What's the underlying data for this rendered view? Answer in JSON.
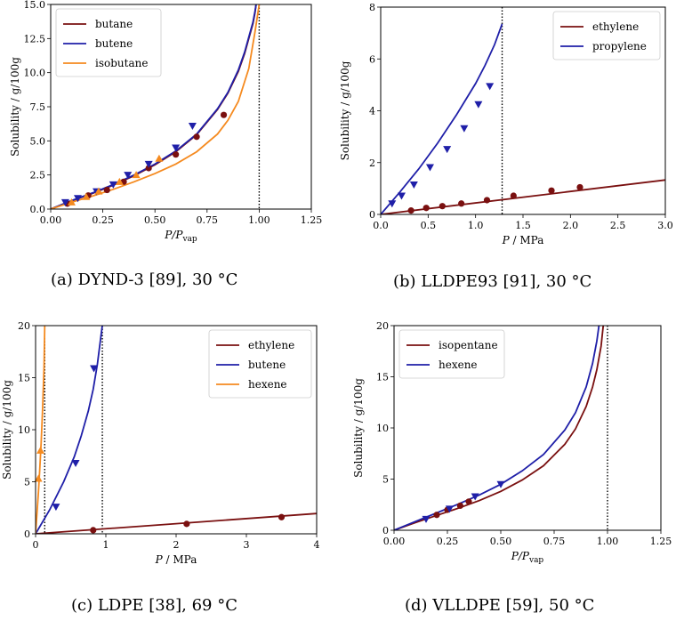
{
  "colors": {
    "maroon": "#7a1010",
    "navy": "#1f1fa8",
    "orange": "#f58a1f"
  },
  "chart_data": [
    {
      "id": "a",
      "type": "line",
      "caption": "(a) DYND-3 [89], 30 °C",
      "ylabel": "Solubility / g/100g",
      "xlabel": "P/P",
      "xlabel_sub": "vap",
      "xlim": [
        0,
        1.25
      ],
      "ylim": [
        0,
        15
      ],
      "xticks": [
        0,
        0.25,
        0.5,
        0.75,
        1.0,
        1.25
      ],
      "xtick_labels": [
        "0.00",
        "0.25",
        "0.50",
        "0.75",
        "1.00",
        "1.25"
      ],
      "yticks": [
        0,
        2.5,
        5,
        7.5,
        10,
        12.5,
        15
      ],
      "ytick_labels": [
        "0.0",
        "2.5",
        "5.0",
        "7.5",
        "10.0",
        "12.5",
        "15.0"
      ],
      "vline": 1.0,
      "legend_position": "top-left",
      "series": [
        {
          "name": "butane",
          "color": "#7a1010",
          "marker": "circle",
          "curve": {
            "x": [
              0,
              0.1,
              0.2,
              0.3,
              0.4,
              0.5,
              0.6,
              0.7,
              0.8,
              0.85,
              0.9,
              0.93,
              0.95,
              0.97,
              0.98,
              0.985
            ],
            "y": [
              0,
              0.6,
              1.15,
              1.75,
              2.45,
              3.25,
              4.2,
              5.45,
              7.3,
              8.5,
              10.1,
              11.4,
              12.5,
              13.6,
              14.4,
              15.0
            ]
          },
          "points": {
            "x": [
              0.08,
              0.18,
              0.27,
              0.35,
              0.47,
              0.6,
              0.7,
              0.83
            ],
            "y": [
              0.4,
              1.0,
              1.4,
              2.0,
              3.0,
              4.0,
              5.3,
              6.9
            ]
          }
        },
        {
          "name": "butene",
          "color": "#1f1fa8",
          "marker": "triangle-down",
          "curve": {
            "x": [
              0,
              0.1,
              0.2,
              0.3,
              0.4,
              0.5,
              0.6,
              0.7,
              0.8,
              0.85,
              0.9,
              0.93,
              0.95,
              0.97,
              0.98,
              0.985
            ],
            "y": [
              0,
              0.62,
              1.18,
              1.8,
              2.5,
              3.3,
              4.25,
              5.5,
              7.35,
              8.55,
              10.2,
              11.5,
              12.6,
              13.7,
              14.5,
              15.0
            ]
          },
          "points": {
            "x": [
              0.07,
              0.13,
              0.22,
              0.3,
              0.37,
              0.47,
              0.6,
              0.68
            ],
            "y": [
              0.5,
              0.8,
              1.3,
              1.8,
              2.5,
              3.3,
              4.5,
              6.1
            ]
          }
        },
        {
          "name": "isobutane",
          "color": "#f58a1f",
          "marker": "triangle-up",
          "curve": {
            "x": [
              0,
              0.1,
              0.2,
              0.3,
              0.4,
              0.5,
              0.6,
              0.7,
              0.8,
              0.85,
              0.9,
              0.95,
              0.98,
              1.0
            ],
            "y": [
              0,
              0.5,
              0.95,
              1.45,
              2.0,
              2.6,
              3.3,
              4.2,
              5.5,
              6.5,
              7.9,
              10.3,
              13.0,
              15.0
            ]
          },
          "points": {
            "x": [
              0.1,
              0.17,
              0.23,
              0.33,
              0.41,
              0.52
            ],
            "y": [
              0.5,
              0.9,
              1.3,
              2.0,
              2.5,
              3.7
            ]
          }
        }
      ]
    },
    {
      "id": "b",
      "type": "line",
      "caption": "(b) LLDPE93 [91], 30 °C",
      "ylabel": "Solubility / g/100g",
      "xlabel": "P / MPa",
      "xlabel_sub": "",
      "xlim": [
        0,
        3.0
      ],
      "ylim": [
        0,
        8
      ],
      "xticks": [
        0,
        0.5,
        1.0,
        1.5,
        2.0,
        2.5,
        3.0
      ],
      "xtick_labels": [
        "0.0",
        "0.5",
        "1.0",
        "1.5",
        "2.0",
        "2.5",
        "3.0"
      ],
      "yticks": [
        0,
        2,
        4,
        6,
        8
      ],
      "ytick_labels": [
        "0",
        "2",
        "4",
        "6",
        "8"
      ],
      "vline": 1.28,
      "legend_position": "top-right",
      "series": [
        {
          "name": "ethylene",
          "color": "#7a1010",
          "marker": "circle",
          "curve": {
            "x": [
              0,
              3.0
            ],
            "y": [
              0,
              1.33
            ]
          },
          "points": {
            "x": [
              0.32,
              0.48,
              0.65,
              0.85,
              1.12,
              1.4,
              1.8,
              2.1
            ],
            "y": [
              0.15,
              0.25,
              0.32,
              0.42,
              0.55,
              0.72,
              0.92,
              1.05
            ]
          }
        },
        {
          "name": "propylene",
          "color": "#1f1fa8",
          "marker": "triangle-down",
          "curve": {
            "x": [
              0,
              0.2,
              0.4,
              0.6,
              0.8,
              1.0,
              1.1,
              1.2,
              1.28
            ],
            "y": [
              0,
              0.85,
              1.75,
              2.75,
              3.85,
              5.05,
              5.75,
              6.55,
              7.35
            ]
          },
          "points": {
            "x": [
              0.12,
              0.22,
              0.35,
              0.52,
              0.7,
              0.88,
              1.03,
              1.15
            ],
            "y": [
              0.42,
              0.72,
              1.15,
              1.82,
              2.52,
              3.32,
              4.25,
              4.95
            ]
          }
        }
      ]
    },
    {
      "id": "c",
      "type": "line",
      "caption": "(c) LDPE [38], 69 °C",
      "ylabel": "Solubility / g/100g",
      "xlabel": "P / MPa",
      "xlabel_sub": "",
      "xlim": [
        0,
        4
      ],
      "ylim": [
        0,
        20
      ],
      "xticks": [
        0,
        1,
        2,
        3,
        4
      ],
      "xtick_labels": [
        "0",
        "1",
        "2",
        "3",
        "4"
      ],
      "yticks": [
        0,
        5,
        10,
        15,
        20
      ],
      "ytick_labels": [
        "0",
        "5",
        "10",
        "15",
        "20"
      ],
      "vlines": [
        0.13,
        0.95
      ],
      "legend_position": "top-right",
      "series": [
        {
          "name": "ethylene",
          "color": "#7a1010",
          "marker": "circle",
          "curve": {
            "x": [
              0,
              4
            ],
            "y": [
              0,
              1.95
            ]
          },
          "points": {
            "x": [
              0.82,
              2.15,
              3.5
            ],
            "y": [
              0.35,
              0.95,
              1.6
            ]
          }
        },
        {
          "name": "butene",
          "color": "#1f1fa8",
          "marker": "triangle-down",
          "curve": {
            "x": [
              0,
              0.2,
              0.4,
              0.55,
              0.65,
              0.75,
              0.82,
              0.88,
              0.93,
              0.95
            ],
            "y": [
              0,
              2.3,
              5.0,
              7.4,
              9.4,
              11.8,
              13.9,
              16.3,
              19.0,
              20.0
            ]
          },
          "points": {
            "x": [
              0.29,
              0.57,
              0.83
            ],
            "y": [
              2.6,
              6.8,
              15.9
            ]
          }
        },
        {
          "name": "hexene",
          "color": "#f58a1f",
          "marker": "triangle-up",
          "curve": {
            "x": [
              0,
              0.02,
              0.04,
              0.06,
              0.08,
              0.1,
              0.12,
              0.13
            ],
            "y": [
              0,
              2.0,
              4.0,
              6.2,
              8.8,
              12.0,
              16.0,
              20.0
            ]
          },
          "points": {
            "x": [
              0.04,
              0.07
            ],
            "y": [
              5.3,
              8.0
            ]
          }
        }
      ]
    },
    {
      "id": "d",
      "type": "line",
      "caption": "(d) VLLDPE [59], 50 °C",
      "ylabel": "Solubility / g/100g",
      "xlabel": "P/P",
      "xlabel_sub": "vap",
      "xlim": [
        0,
        1.25
      ],
      "ylim": [
        0,
        20
      ],
      "xticks": [
        0,
        0.25,
        0.5,
        0.75,
        1.0,
        1.25
      ],
      "xtick_labels": [
        "0.00",
        "0.25",
        "0.50",
        "0.75",
        "1.00",
        "1.25"
      ],
      "yticks": [
        0,
        5,
        10,
        15,
        20
      ],
      "ytick_labels": [
        "0",
        "5",
        "10",
        "15",
        "20"
      ],
      "vline": 1.0,
      "legend_position": "top-left",
      "series": [
        {
          "name": "isopentane",
          "color": "#7a1010",
          "marker": "circle",
          "curve": {
            "x": [
              0,
              0.1,
              0.2,
              0.3,
              0.4,
              0.5,
              0.6,
              0.7,
              0.8,
              0.85,
              0.9,
              0.93,
              0.95,
              0.97,
              0.98
            ],
            "y": [
              0,
              0.75,
              1.45,
              2.15,
              2.9,
              3.8,
              4.9,
              6.3,
              8.4,
              9.9,
              12.1,
              14.0,
              15.7,
              18.0,
              20.0
            ]
          },
          "points": {
            "x": [
              0.2,
              0.25,
              0.31,
              0.35
            ],
            "y": [
              1.5,
              2.0,
              2.4,
              2.8
            ]
          }
        },
        {
          "name": "hexene",
          "color": "#1f1fa8",
          "marker": "triangle-down",
          "curve": {
            "x": [
              0,
              0.1,
              0.2,
              0.3,
              0.4,
              0.5,
              0.6,
              0.7,
              0.8,
              0.85,
              0.9,
              0.93,
              0.95,
              0.96
            ],
            "y": [
              0,
              0.85,
              1.7,
              2.55,
              3.45,
              4.5,
              5.8,
              7.4,
              9.8,
              11.5,
              14.0,
              16.3,
              18.5,
              20.0
            ]
          },
          "points": {
            "x": [
              0.15,
              0.26,
              0.38,
              0.5
            ],
            "y": [
              1.1,
              2.1,
              3.3,
              4.5
            ]
          }
        }
      ]
    }
  ]
}
